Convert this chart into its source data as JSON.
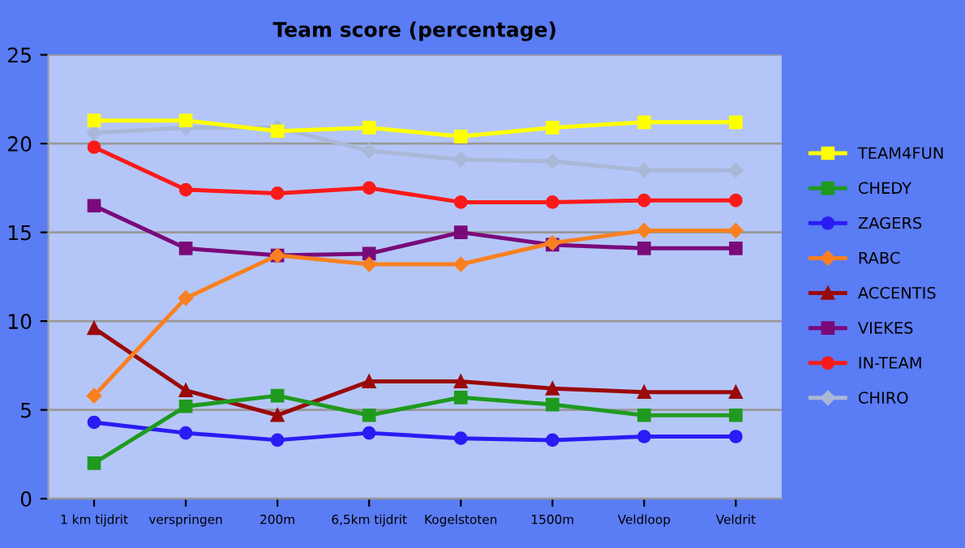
{
  "chart_data": {
    "type": "line",
    "title": "Team score (percentage)",
    "categories": [
      "1 km tijdrit",
      "verspringen",
      "200m",
      "6,5km tijdrit",
      "Kogelstoten",
      "1500m",
      "Veldloop",
      "Veldrit"
    ],
    "series": [
      {
        "name": "TEAM4FUN",
        "color": "#ffff00",
        "marker": "square",
        "values": [
          21.3,
          21.3,
          20.7,
          20.9,
          20.4,
          20.9,
          21.2,
          21.2
        ]
      },
      {
        "name": "CHEDY",
        "color": "#1f9a1f",
        "marker": "square",
        "values": [
          2.0,
          5.2,
          5.8,
          4.7,
          5.7,
          5.3,
          4.7,
          4.7
        ]
      },
      {
        "name": "ZAGERS",
        "color": "#2a1cf5",
        "marker": "circle",
        "values": [
          4.3,
          3.7,
          3.3,
          3.7,
          3.4,
          3.3,
          3.5,
          3.5
        ]
      },
      {
        "name": "RABC",
        "color": "#f98020",
        "marker": "diamond",
        "values": [
          5.8,
          11.3,
          13.7,
          13.2,
          13.2,
          14.4,
          15.1,
          15.1
        ]
      },
      {
        "name": "ACCENTIS",
        "color": "#9a0a0a",
        "marker": "triangle",
        "values": [
          9.6,
          6.1,
          4.7,
          6.6,
          6.6,
          6.2,
          6.0,
          6.0
        ]
      },
      {
        "name": "VIEKES",
        "color": "#7a0a7a",
        "marker": "square",
        "values": [
          16.5,
          14.1,
          13.7,
          13.8,
          15.0,
          14.3,
          14.1,
          14.1
        ]
      },
      {
        "name": "IN-TEAM",
        "color": "#fb1a1a",
        "marker": "circle",
        "values": [
          19.8,
          17.4,
          17.2,
          17.5,
          16.7,
          16.7,
          16.8,
          16.8
        ]
      },
      {
        "name": "CHIRO",
        "color": "#a9b8d6",
        "marker": "diamond",
        "values": [
          20.6,
          20.9,
          20.9,
          19.6,
          19.1,
          19.0,
          18.5,
          18.5
        ]
      }
    ],
    "ylim": [
      0,
      25
    ],
    "yticks": [
      0,
      5,
      10,
      15,
      20,
      25
    ],
    "grid": "y",
    "legend": "right",
    "line_style": "solid"
  }
}
